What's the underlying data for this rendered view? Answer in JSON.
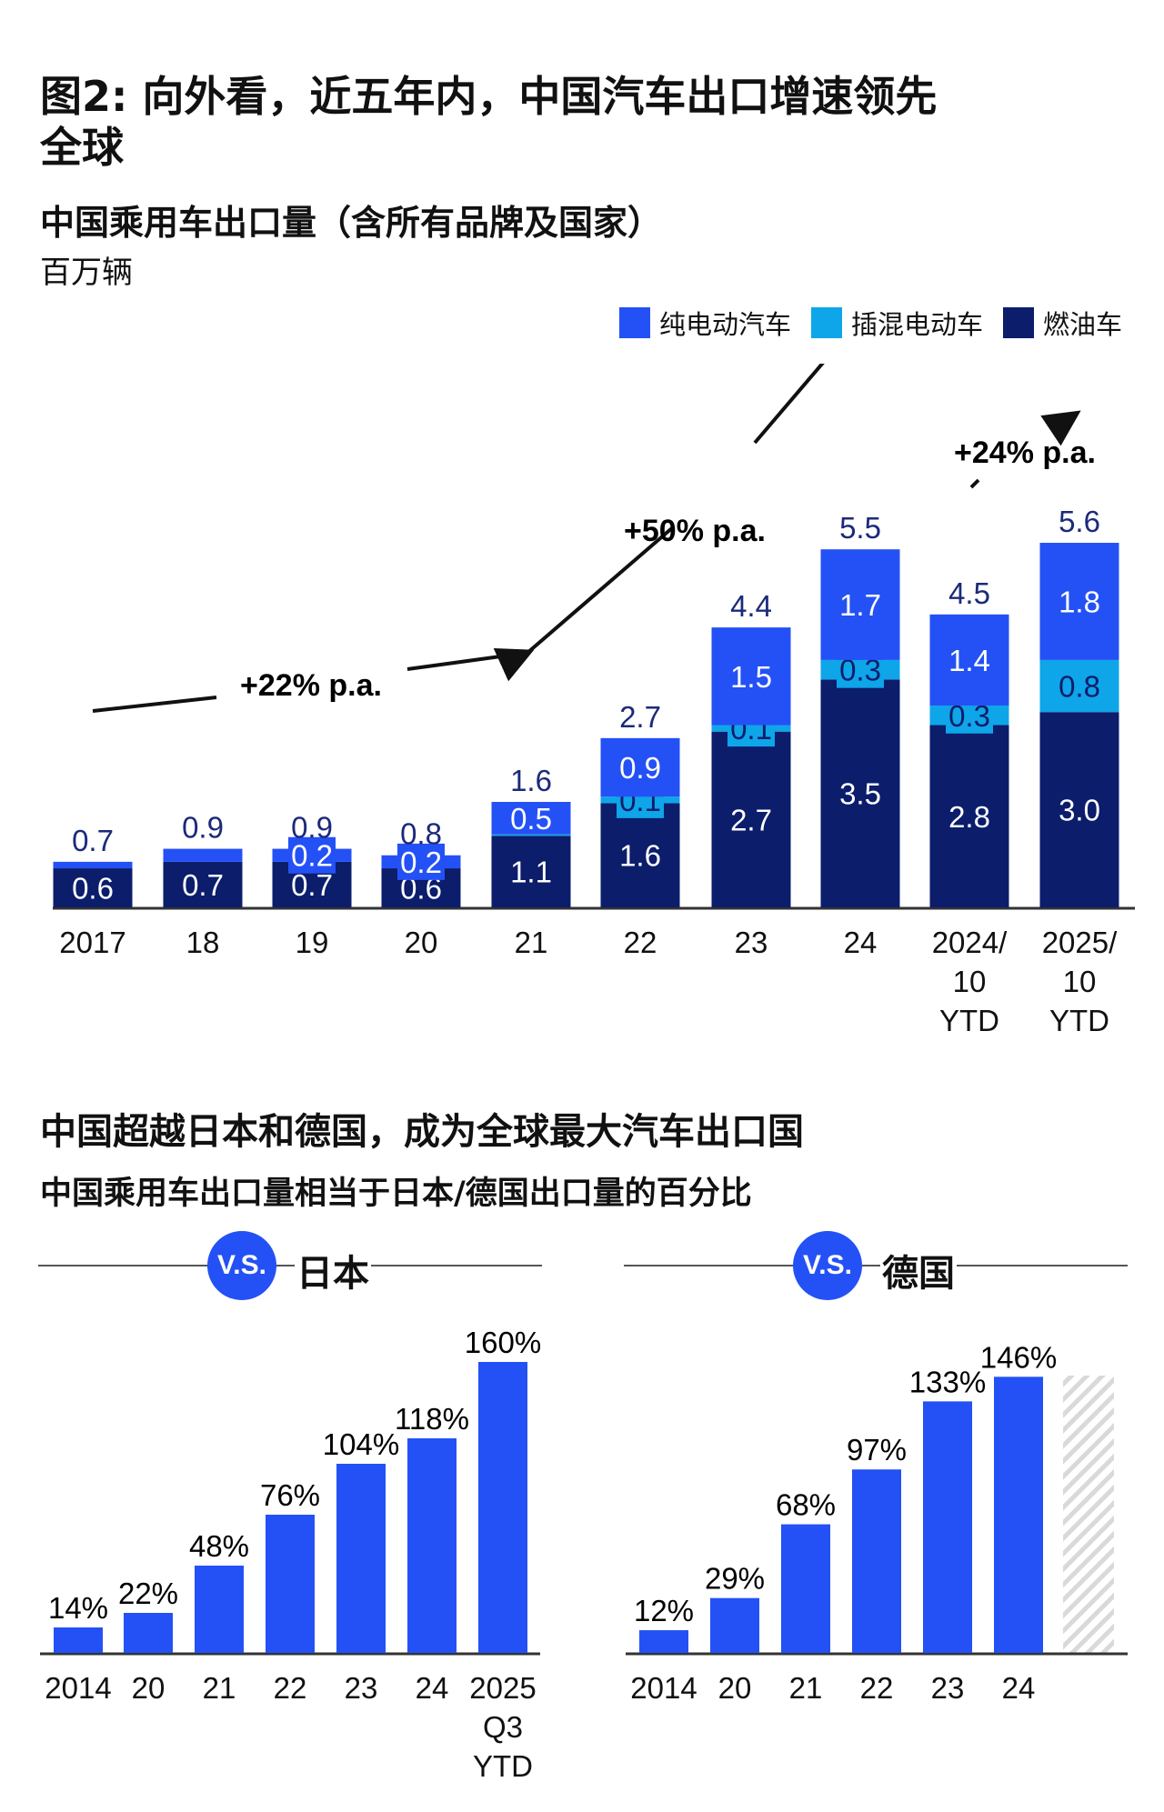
{
  "header": {
    "title_line1": "图2: 向外看，近五年内，中国汽车出口增速领先",
    "title_line2": "全球",
    "subtitle": "中国乘用车出口量（含所有品牌及国家）",
    "unit": "百万辆"
  },
  "section2": {
    "title": "中国超越日本和德国，成为全球最大汽车出口国",
    "subtitle": "中国乘用车出口量相当于日本/德国出口量的百分比",
    "vs_badge": "V.S.",
    "japan_label": "日本",
    "germany_label": "德国"
  },
  "colors": {
    "bev": "#2451f5",
    "phev": "#0ea5e9",
    "ice": "#0b1d6b",
    "bar": "#2451f5",
    "hatch": "#d9d9d9"
  },
  "chart_data": [
    {
      "type": "bar",
      "stacked": true,
      "title": "中国乘用车出口量（含所有品牌及国家）",
      "ylabel": "百万辆",
      "legend": [
        "纯电动汽车",
        "插混电动车",
        "燃油车"
      ],
      "legend_position": "top-right",
      "categories": [
        "2017",
        "18",
        "19",
        "20",
        "21",
        "22",
        "23",
        "24",
        "2024/\n10\nYTD",
        "2025/\n10\nYTD"
      ],
      "series": [
        {
          "name": "燃油车",
          "key": "ice",
          "values": [
            0.6,
            0.7,
            0.7,
            0.6,
            1.1,
            1.6,
            2.7,
            3.5,
            2.8,
            3.0
          ],
          "labels": [
            "0.6",
            "0.7",
            "0.7",
            "0.6",
            "1.1",
            "1.6",
            "2.7",
            "3.5",
            "2.8",
            "3.0"
          ]
        },
        {
          "name": "插混电动车",
          "key": "phev",
          "values": [
            0,
            0,
            0,
            0,
            0.02,
            0.1,
            0.1,
            0.3,
            0.3,
            0.8
          ],
          "labels": [
            "",
            "",
            "",
            "",
            "",
            "0.1",
            "0.1",
            "0.3",
            "0.3",
            "0.8"
          ]
        },
        {
          "name": "纯电动汽车",
          "key": "bev",
          "values": [
            0.1,
            0.2,
            0.2,
            0.2,
            0.5,
            0.9,
            1.5,
            1.7,
            1.4,
            1.8
          ],
          "labels": [
            "",
            "",
            "0.2",
            "0.2",
            "0.5",
            "0.9",
            "1.5",
            "1.7",
            "1.4",
            "1.8"
          ]
        }
      ],
      "totals": [
        "0.7",
        "0.9",
        "0.9",
        "0.8",
        "1.6",
        "2.7",
        "4.4",
        "5.5",
        "4.5",
        "5.6"
      ],
      "annotations": [
        "+22% p.a.",
        "+50% p.a.",
        "+24% p.a."
      ],
      "ylim": [
        0,
        6
      ]
    },
    {
      "type": "bar",
      "title": "V.S. 日本",
      "categories": [
        "2014",
        "20",
        "21",
        "22",
        "23",
        "24",
        "2025\nQ3\nYTD"
      ],
      "values": [
        14,
        22,
        48,
        76,
        104,
        118,
        160
      ],
      "labels": [
        "14%",
        "22%",
        "48%",
        "76%",
        "104%",
        "118%",
        "160%"
      ],
      "ylim": [
        0,
        170
      ]
    },
    {
      "type": "bar",
      "title": "V.S. 德国",
      "categories": [
        "2014",
        "20",
        "21",
        "22",
        "23",
        "24",
        ""
      ],
      "values": [
        12,
        29,
        68,
        97,
        133,
        146,
        null
      ],
      "labels": [
        "12%",
        "29%",
        "68%",
        "97%",
        "133%",
        "146%",
        ""
      ],
      "ylim": [
        0,
        170
      ]
    }
  ]
}
